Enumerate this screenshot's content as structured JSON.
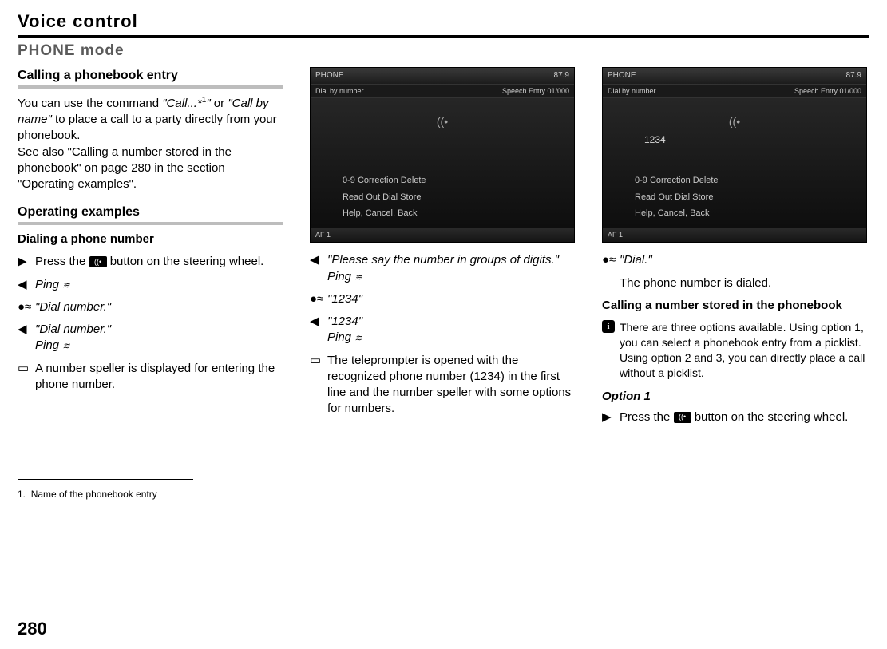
{
  "section_title": "Voice control",
  "heading2": "PHONE mode",
  "page_number": "280",
  "footnote": {
    "num": "1.",
    "text": "Name of the phonebook entry"
  },
  "col1": {
    "h3": "Calling a phonebook entry",
    "para1a": "You can use the command ",
    "para1b": "\"Call...*",
    "para1sup": "1",
    "para1c": "\"",
    "para1d": " or ",
    "para1e": "\"Call by name\"",
    "para1f": " to place a call to a party directly from your phonebook.",
    "para2": "See also \"Calling a number stored in the phonebook\" on page 280 in the section \"Operating examples\".",
    "h3b": "Operating examples",
    "h4": "Dialing a phone number",
    "step1a": "Press the ",
    "step1b": " button on the steering wheel.",
    "step2": "Ping",
    "step3": "\"Dial number.\"",
    "step4a": "\"Dial number.\"",
    "step4b": "Ping",
    "step5": "A number speller is displayed for entering the phone number."
  },
  "col2": {
    "shot": {
      "top_left": "PHONE",
      "top_right": "87.9",
      "row2_left": "Dial by number",
      "row2_right": "Speech Entry   01/000",
      "line1": "0-9   Correction   Delete",
      "line2": "Read Out   Dial   Store",
      "line3": "Help, Cancel, Back",
      "bottom": "AF 1"
    },
    "step1a": "\"Please say the number in groups of digits.\"",
    "step1b": "Ping",
    "step2": "\"1234\"",
    "step3a": "\"1234\"",
    "step3b": "Ping",
    "step4": "The teleprompter is opened with the recognized phone number (1234) in the first line and the number speller with some options for numbers."
  },
  "col3": {
    "shot": {
      "top_left": "PHONE",
      "top_right": "87.9",
      "row2_left": "Dial by number",
      "row2_right": "Speech Entry   01/000",
      "typed": "1234",
      "line1": "0-9   Correction   Delete",
      "line2": "Read Out   Dial   Store",
      "line3": "Help, Cancel, Back",
      "bottom": "AF 1"
    },
    "step1": "\"Dial.\"",
    "step1b": "The phone number is dialed.",
    "h4": "Calling a number stored in the phonebook",
    "info": "There are three options available. Using option 1, you can select a phonebook entry from a picklist. Using option 2 and 3, you can directly place a call without a picklist.",
    "h4i": "Option 1",
    "step2a": "Press the ",
    "step2b": " button on the steering wheel."
  },
  "icons": {
    "speaker": "◀",
    "talk": "●≈",
    "action": "▶",
    "screen": "▭",
    "ping": "≋"
  }
}
